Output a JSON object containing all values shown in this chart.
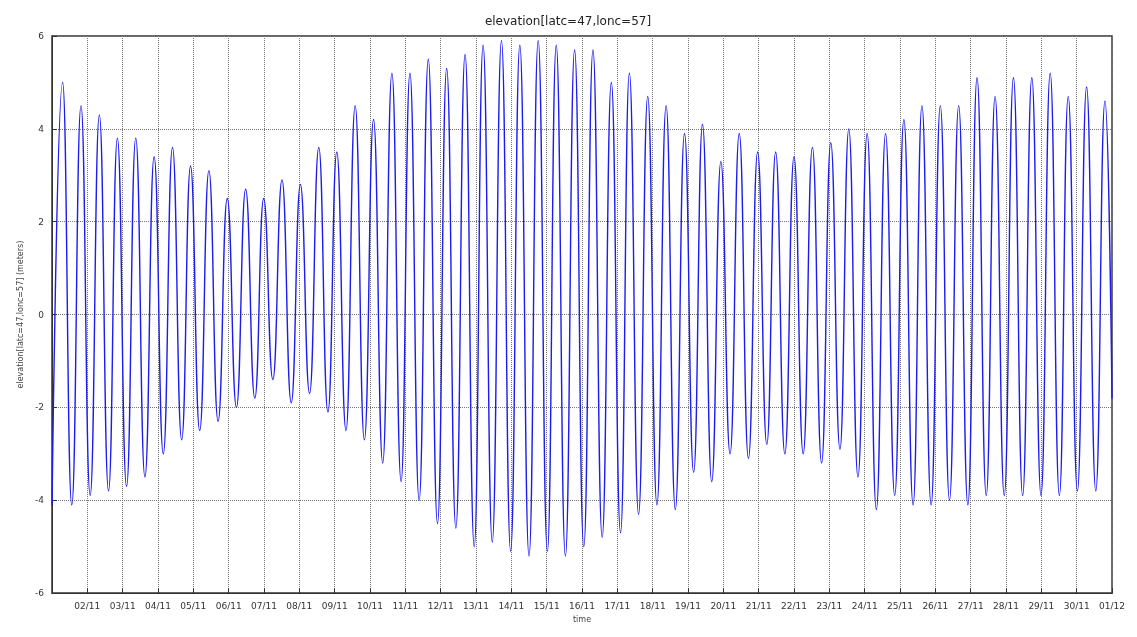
{
  "chart_data": {
    "type": "line",
    "title": "elevation[latc=47,lonc=57]",
    "xlabel": "time",
    "ylabel": "elevation[latc=47,lonc=57] (meters)",
    "xlim": [
      "--11-01",
      "--12-01"
    ],
    "ylim": [
      -6,
      6
    ],
    "yticks": [
      -6,
      -4,
      -2,
      0,
      2,
      4,
      6
    ],
    "xticks": [
      {
        "value": "--11-02",
        "label": "02/11"
      },
      {
        "value": "--11-03",
        "label": "03/11"
      },
      {
        "value": "--11-04",
        "label": "04/11"
      },
      {
        "value": "--11-05",
        "label": "05/11"
      },
      {
        "value": "--11-06",
        "label": "06/11"
      },
      {
        "value": "--11-07",
        "label": "07/11"
      },
      {
        "value": "--11-08",
        "label": "08/11"
      },
      {
        "value": "--11-09",
        "label": "09/11"
      },
      {
        "value": "--11-10",
        "label": "10/11"
      },
      {
        "value": "--11-11",
        "label": "11/11"
      },
      {
        "value": "--11-12",
        "label": "12/11"
      },
      {
        "value": "--11-13",
        "label": "13/11"
      },
      {
        "value": "--11-14",
        "label": "14/11"
      },
      {
        "value": "--11-15",
        "label": "15/11"
      },
      {
        "value": "--11-16",
        "label": "16/11"
      },
      {
        "value": "--11-17",
        "label": "17/11"
      },
      {
        "value": "--11-18",
        "label": "18/11"
      },
      {
        "value": "--11-19",
        "label": "19/11"
      },
      {
        "value": "--11-20",
        "label": "20/11"
      },
      {
        "value": "--11-21",
        "label": "21/11"
      },
      {
        "value": "--11-22",
        "label": "22/11"
      },
      {
        "value": "--11-23",
        "label": "23/11"
      },
      {
        "value": "--11-24",
        "label": "24/11"
      },
      {
        "value": "--11-25",
        "label": "25/11"
      },
      {
        "value": "--11-26",
        "label": "26/11"
      },
      {
        "value": "--11-27",
        "label": "27/11"
      },
      {
        "value": "--11-28",
        "label": "28/11"
      },
      {
        "value": "--11-29",
        "label": "29/11"
      },
      {
        "value": "--11-30",
        "label": "30/11"
      },
      {
        "value": "--12-01",
        "label": "01/12"
      }
    ],
    "grid": true,
    "marker": "none",
    "line_style": "solid",
    "series": [
      {
        "color": "#1c1cf0",
        "x": [
          "--11-01T00:00",
          "--11-01T07:12",
          "--11-01T13:26",
          "--11-01T19:41",
          "--11-02T01:55",
          "--11-02T08:10",
          "--11-02T14:24",
          "--11-02T20:24",
          "--11-03T02:38",
          "--11-03T08:53",
          "--11-03T15:07",
          "--11-03T21:22",
          "--11-04T03:36",
          "--11-04T09:50",
          "--11-04T16:05",
          "--11-04T22:05",
          "--11-05T04:19",
          "--11-05T10:34",
          "--11-05T16:48",
          "--11-05T23:02",
          "--11-06T05:17",
          "--11-06T11:31",
          "--11-06T17:46",
          "--11-06T23:46",
          "--11-07T06:00",
          "--11-07T12:14",
          "--11-07T18:29",
          "--11-08T00:43",
          "--11-08T06:58",
          "--11-08T13:12",
          "--11-08T19:26",
          "--11-09T01:26",
          "--11-09T07:41",
          "--11-09T13:55",
          "--11-09T20:10",
          "--11-10T02:24",
          "--11-10T08:38",
          "--11-10T14:53",
          "--11-10T21:07",
          "--11-11T03:07",
          "--11-11T09:22",
          "--11-11T15:36",
          "--11-11T21:50",
          "--11-12T04:05",
          "--11-12T10:19",
          "--11-12T16:34",
          "--11-12T22:48",
          "--11-13T04:48",
          "--11-13T11:02",
          "--11-13T17:17",
          "--11-13T23:31",
          "--11-14T05:46",
          "--11-14T12:00",
          "--11-14T18:14",
          "--11-15T00:29",
          "--11-15T06:29",
          "--11-15T12:43",
          "--11-15T18:58",
          "--11-16T01:12",
          "--11-16T07:26",
          "--11-16T13:41",
          "--11-16T19:55",
          "--11-17T02:10",
          "--11-17T08:10",
          "--11-17T14:24",
          "--11-17T20:38",
          "--11-18T02:53",
          "--11-18T09:07",
          "--11-18T15:22",
          "--11-18T21:36",
          "--11-19T03:50",
          "--11-19T09:50",
          "--11-19T16:05",
          "--11-19T22:19",
          "--11-20T04:34",
          "--11-20T10:48",
          "--11-20T17:02",
          "--11-20T23:17",
          "--11-21T05:31",
          "--11-21T11:31",
          "--11-21T17:46",
          "--11-22T00:00",
          "--11-22T06:14",
          "--11-22T12:29",
          "--11-22T18:43",
          "--11-23T00:58",
          "--11-23T07:12",
          "--11-23T13:12",
          "--11-23T19:26",
          "--11-24T01:41",
          "--11-24T07:55",
          "--11-24T14:10",
          "--11-24T20:24",
          "--11-25T02:38",
          "--11-25T08:53",
          "--11-25T14:53",
          "--11-25T21:07",
          "--11-26T03:22",
          "--11-26T09:36",
          "--11-26T15:50",
          "--11-26T22:05",
          "--11-27T04:19",
          "--11-27T10:34",
          "--11-27T16:34",
          "--11-27T22:48",
          "--11-28T05:02",
          "--11-28T11:17",
          "--11-28T17:31",
          "--11-28T23:46",
          "--11-29T06:00",
          "--11-29T12:14",
          "--11-29T18:14",
          "--11-30T00:29",
          "--11-30T06:43",
          "--11-30T12:58",
          "--11-30T19:12",
          "--12-01T00:00"
        ],
        "values": [
          -4.1,
          5.0,
          -4.1,
          4.5,
          -3.9,
          4.3,
          -3.8,
          3.8,
          -3.7,
          3.8,
          -3.5,
          3.4,
          -3.0,
          3.6,
          -2.7,
          3.2,
          -2.5,
          3.1,
          -2.3,
          2.5,
          -2.0,
          2.7,
          -1.8,
          2.5,
          -1.4,
          2.9,
          -1.9,
          2.8,
          -1.7,
          3.6,
          -2.1,
          3.5,
          -2.5,
          4.5,
          -2.7,
          4.2,
          -3.2,
          5.2,
          -3.6,
          5.2,
          -4.0,
          5.5,
          -4.5,
          5.3,
          -4.6,
          5.6,
          -5.0,
          5.8,
          -4.9,
          5.9,
          -5.1,
          5.8,
          -5.2,
          5.9,
          -5.1,
          5.8,
          -5.2,
          5.7,
          -5.0,
          5.7,
          -4.8,
          5.0,
          -4.7,
          5.2,
          -4.3,
          4.7,
          -4.1,
          4.5,
          -4.2,
          3.9,
          -3.4,
          4.1,
          -3.6,
          3.3,
          -3.0,
          3.9,
          -3.1,
          3.5,
          -2.8,
          3.5,
          -3.0,
          3.4,
          -3.0,
          3.6,
          -3.2,
          3.7,
          -2.9,
          4.0,
          -3.5,
          3.9,
          -4.2,
          3.9,
          -3.9,
          4.2,
          -4.1,
          4.5,
          -4.1,
          4.5,
          -4.0,
          4.5,
          -4.1,
          5.1,
          -3.9,
          4.7,
          -3.9,
          5.1,
          -3.9,
          5.1,
          -3.9,
          5.2,
          -3.9,
          4.7,
          -3.8,
          4.9,
          -3.8,
          4.6,
          -1.8
        ]
      }
    ]
  }
}
